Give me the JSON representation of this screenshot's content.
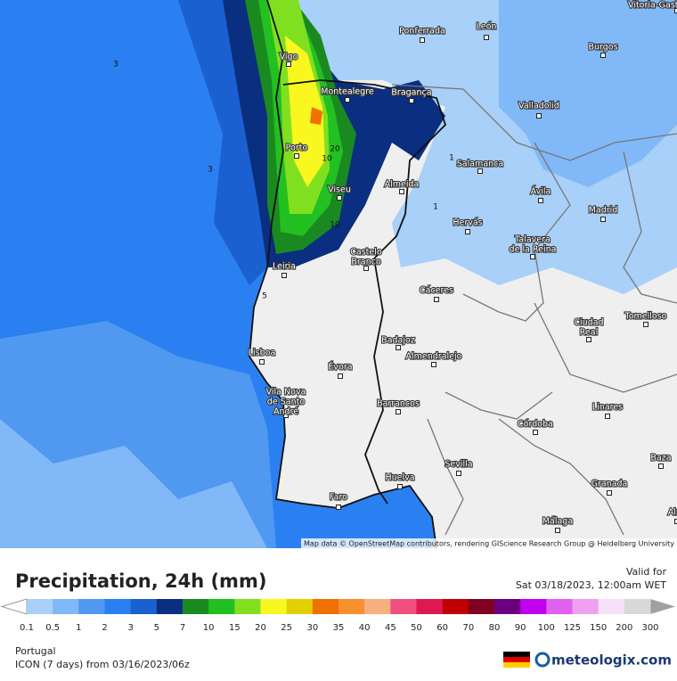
{
  "map": {
    "cities": [
      {
        "lines": [
          "Vitoria-Gasteiz"
        ]
      },
      {
        "lines": [
          "Ponferrada"
        ]
      },
      {
        "lines": [
          "León"
        ]
      },
      {
        "lines": [
          "Burgos"
        ]
      },
      {
        "lines": [
          "Vigo"
        ]
      },
      {
        "lines": [
          "Montealegre"
        ]
      },
      {
        "lines": [
          "Bragança"
        ]
      },
      {
        "lines": [
          "Valladolid"
        ]
      },
      {
        "lines": [
          "Porto"
        ]
      },
      {
        "lines": [
          "Salamanca"
        ]
      },
      {
        "lines": [
          "Almeida"
        ]
      },
      {
        "lines": [
          "Viseu"
        ]
      },
      {
        "lines": [
          "Ávila"
        ]
      },
      {
        "lines": [
          "Madrid"
        ]
      },
      {
        "lines": [
          "Hervás"
        ]
      },
      {
        "lines": [
          "Talavera",
          "de la Reina"
        ]
      },
      {
        "lines": [
          "Castelo",
          "Branco"
        ]
      },
      {
        "lines": [
          "Leiria"
        ]
      },
      {
        "lines": [
          "Cáceres"
        ]
      },
      {
        "lines": [
          "Ciudad",
          "Real"
        ]
      },
      {
        "lines": [
          "Tomelloso"
        ]
      },
      {
        "lines": [
          "Badajoz"
        ]
      },
      {
        "lines": [
          "Lisboa"
        ]
      },
      {
        "lines": [
          "Almendralejo"
        ]
      },
      {
        "lines": [
          "Évora"
        ]
      },
      {
        "lines": [
          "Vila Nova",
          "de Santo",
          "André"
        ]
      },
      {
        "lines": [
          "Barrancos"
        ]
      },
      {
        "lines": [
          "Linares"
        ]
      },
      {
        "lines": [
          "Córdoba"
        ]
      },
      {
        "lines": [
          "Baza"
        ]
      },
      {
        "lines": [
          "Sevilla"
        ]
      },
      {
        "lines": [
          "Huelva"
        ]
      },
      {
        "lines": [
          "Granada"
        ]
      },
      {
        "lines": [
          "Faro"
        ]
      },
      {
        "lines": [
          "Málaga"
        ]
      },
      {
        "lines": [
          "Almería"
        ]
      }
    ],
    "contour_labels": [
      "3",
      "3",
      "20",
      "10",
      "10",
      "1",
      "1",
      "5"
    ],
    "attribution": "Map data © OpenStreetMap contributors, rendering GIScience Research Group @ Heidelberg University"
  },
  "legend": {
    "title": "Precipitation, 24h (mm)",
    "valid_label": "Valid for",
    "valid_time": "Sat 03/18/2023, 12:00am WET",
    "values": [
      0.1,
      0.5,
      1,
      2,
      3,
      5,
      7,
      10,
      15,
      20,
      25,
      30,
      35,
      40,
      45,
      50,
      60,
      70,
      80,
      90,
      100,
      125,
      150,
      200,
      300
    ],
    "colors": [
      "#a8d0f8",
      "#80b8f8",
      "#5098f0",
      "#2a80f0",
      "#1a60d0",
      "#0a2e80",
      "#1a8a20",
      "#22c020",
      "#80e020",
      "#f8f820",
      "#e0d000",
      "#f07000",
      "#f89030",
      "#f8b080",
      "#f05080",
      "#e01850",
      "#c00000",
      "#800020",
      "#6a0080",
      "#c000f0",
      "#e060f0",
      "#f0a0f0",
      "#f8e0f8",
      "#d8d8d8"
    ],
    "below_color": "#ffffff",
    "above_color": "#a0a0a0"
  },
  "footer": {
    "region": "Portugal",
    "model": "ICON (7 days) from 03/16/2023/06z",
    "brand": "meteologix.com"
  }
}
